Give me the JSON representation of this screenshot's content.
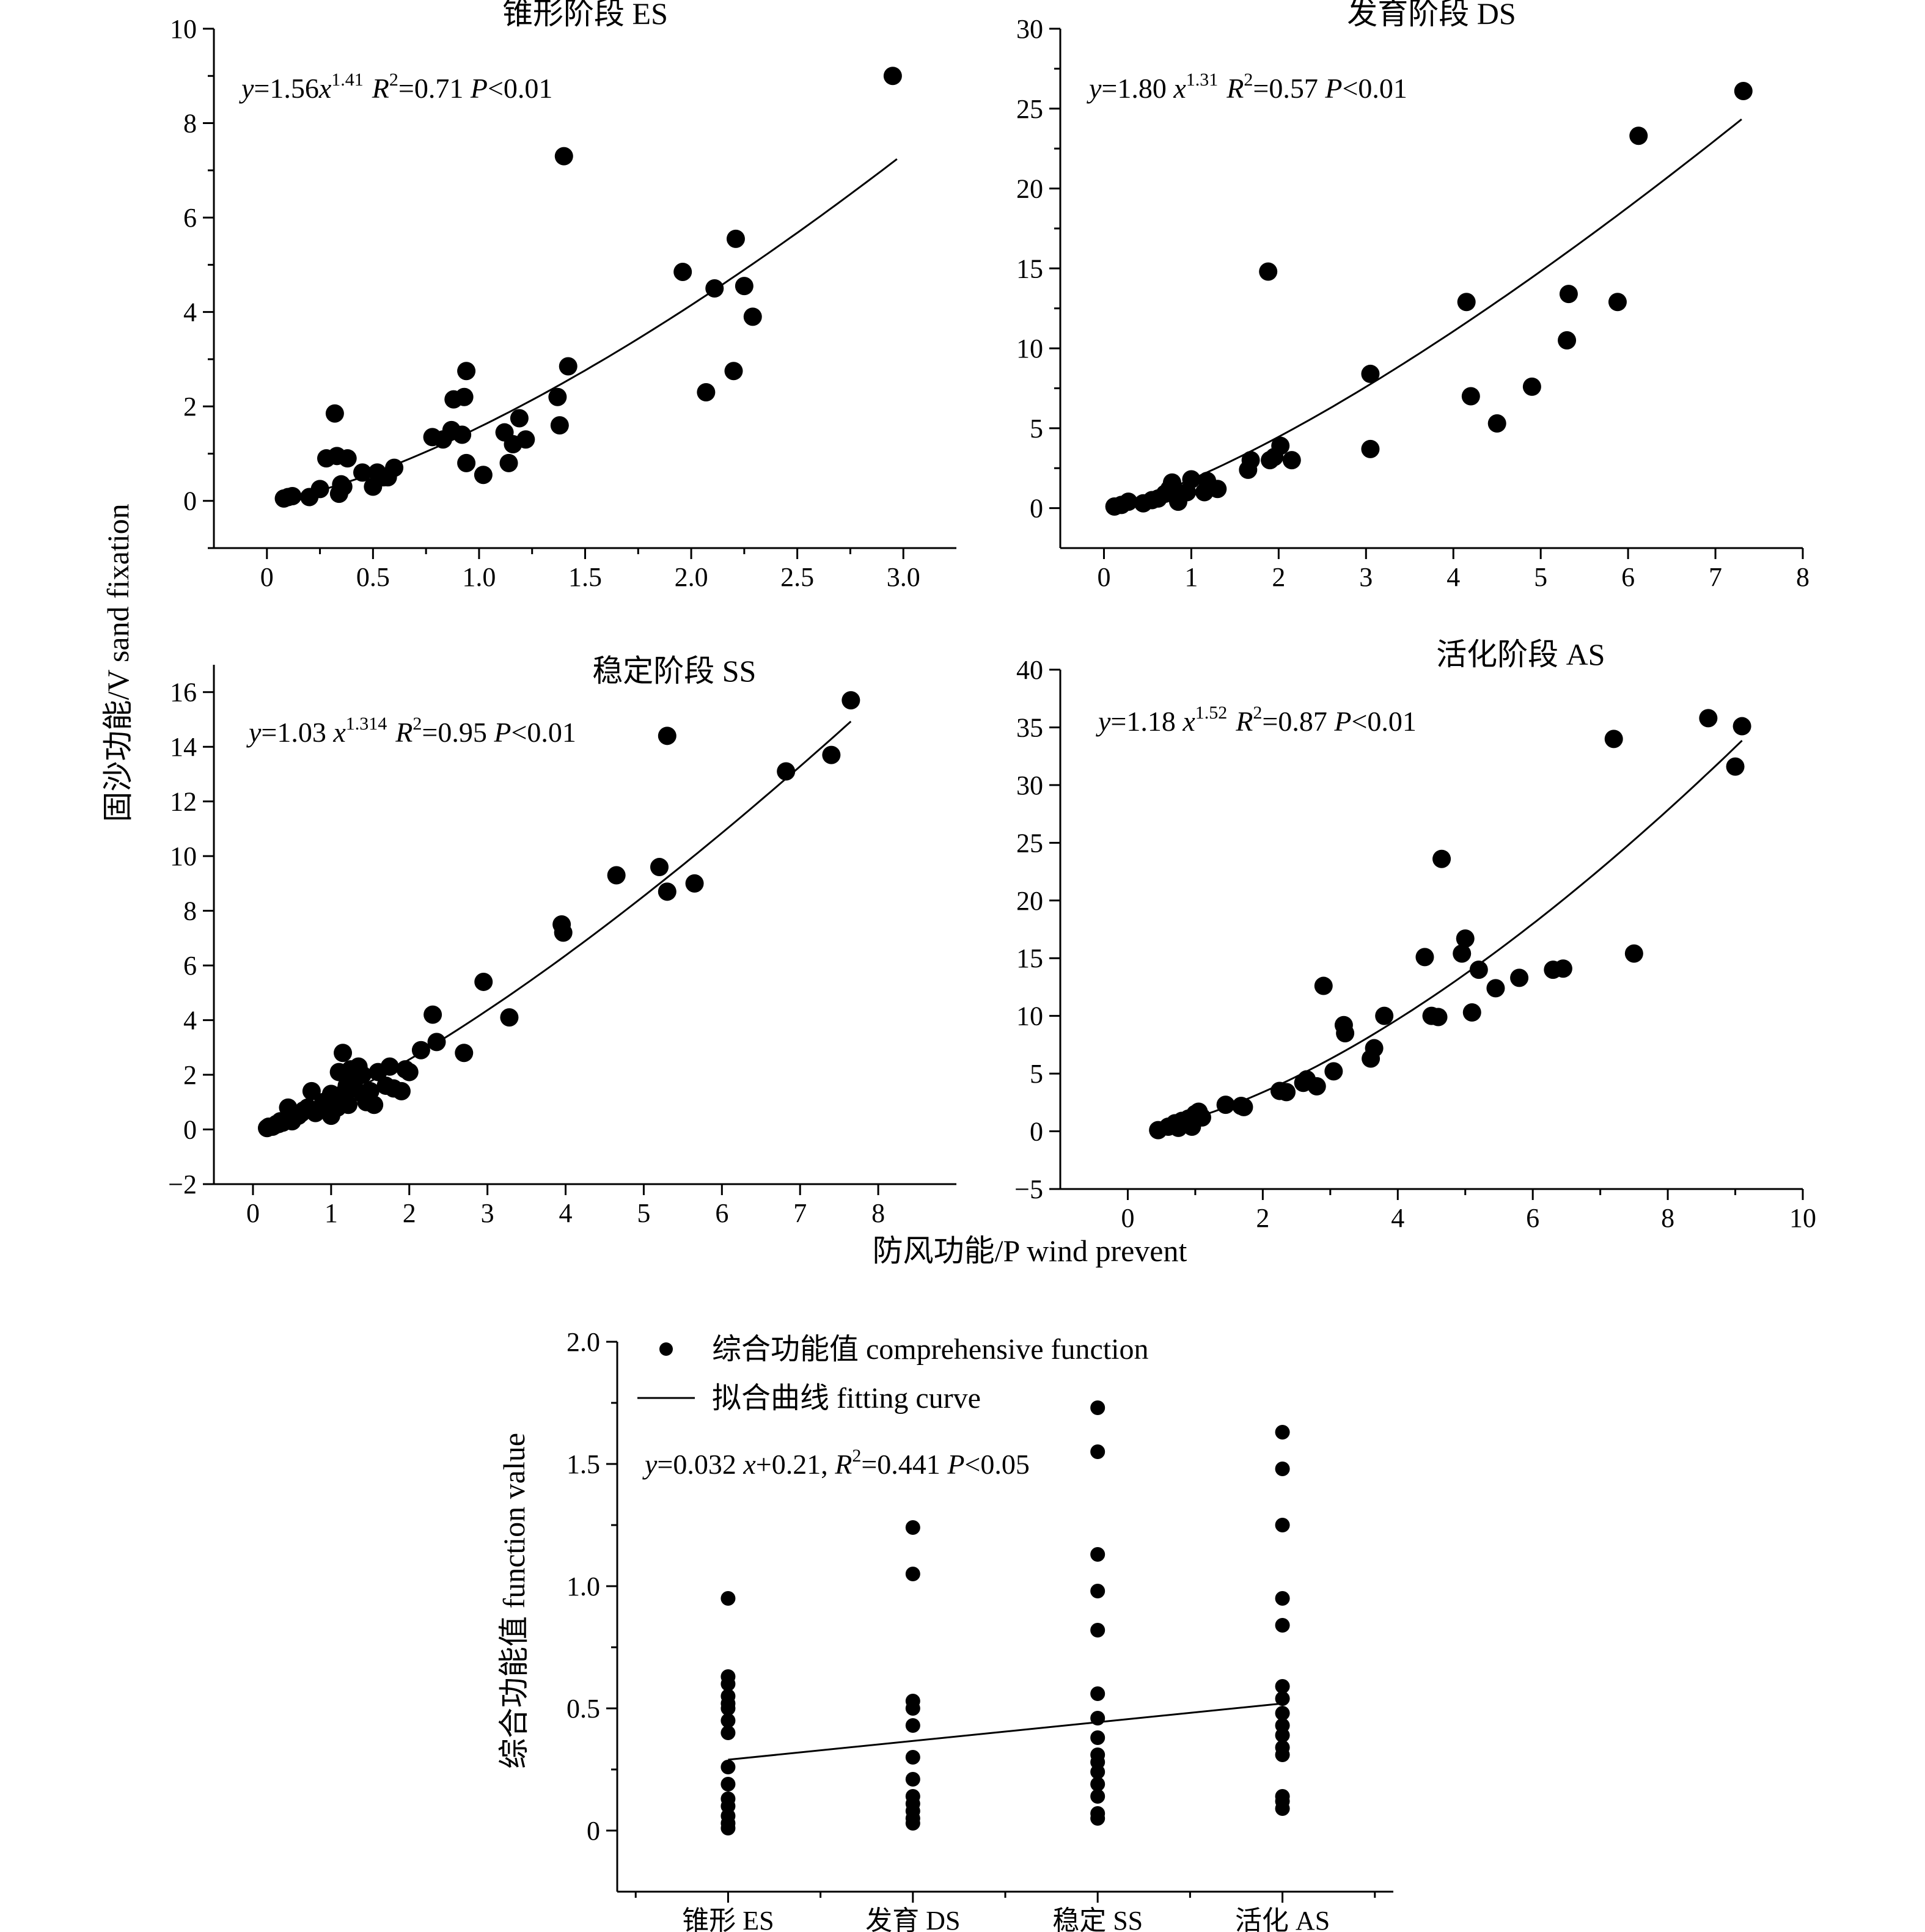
{
  "figure": {
    "shared_ylabel": "固沙功能/V sand fixation",
    "shared_xlabel": "防风功能/P wind prevent"
  },
  "chart_data": [
    {
      "id": "es",
      "type": "scatter",
      "title": "锥形阶段  ES",
      "equation": {
        "prefix": "y=1.56x",
        "exponent": "1.41",
        "r2_value": "=0.71",
        "p_value": "<0.01"
      },
      "fit": {
        "kind": "power",
        "a": 1.56,
        "b": 1.41,
        "x_from": 0.1,
        "x_to": 2.97
      },
      "xlim": [
        -0.25,
        3.25
      ],
      "ylim": [
        -1,
        10
      ],
      "xticks": [
        0,
        0.5,
        1.0,
        1.5,
        2.0,
        2.5,
        3.0
      ],
      "xtick_labels": [
        "0",
        "0.5",
        "1.0",
        "1.5",
        "2.0",
        "2.5",
        "3.0"
      ],
      "xtick_minor": [
        0.25,
        0.75,
        1.25,
        1.75,
        2.25,
        2.75
      ],
      "yticks": [
        0,
        2,
        4,
        6,
        8,
        10
      ],
      "ytick_labels": [
        "0",
        "2",
        "4",
        "6",
        "8",
        "10"
      ],
      "ytick_minor": [
        -1,
        1,
        3,
        5,
        7,
        9
      ],
      "x": [
        0.08,
        0.1,
        0.12,
        0.2,
        0.25,
        0.28,
        0.32,
        0.33,
        0.34,
        0.35,
        0.36,
        0.38,
        0.45,
        0.5,
        0.52,
        0.55,
        0.57,
        0.6,
        0.78,
        0.83,
        0.87,
        0.88,
        0.92,
        0.93,
        0.94,
        0.94,
        1.02,
        1.12,
        1.14,
        1.16,
        1.19,
        1.22,
        1.37,
        1.38,
        1.4,
        1.42,
        1.96,
        2.07,
        2.11,
        2.2,
        2.21,
        2.25,
        2.29,
        2.95
      ],
      "y": [
        0.05,
        0.08,
        0.1,
        0.08,
        0.25,
        0.9,
        1.85,
        0.95,
        0.15,
        0.35,
        0.3,
        0.9,
        0.6,
        0.3,
        0.6,
        0.5,
        0.5,
        0.7,
        1.35,
        1.3,
        1.5,
        2.15,
        1.4,
        2.2,
        2.75,
        0.8,
        0.55,
        1.45,
        0.8,
        1.2,
        1.75,
        1.3,
        2.2,
        1.6,
        7.3,
        2.85,
        4.85,
        2.3,
        4.5,
        2.75,
        5.55,
        4.55,
        3.9,
        9.0
      ]
    },
    {
      "id": "ds",
      "type": "scatter",
      "title": "发育阶段  DS",
      "equation": {
        "prefix": "y=1.80 x",
        "exponent": "1.31",
        "r2_value": "=0.57",
        "p_value": "<0.01"
      },
      "fit": {
        "kind": "power",
        "a": 1.8,
        "b": 1.31,
        "x_from": 0.1,
        "x_to": 7.3
      },
      "xlim": [
        -0.5,
        8
      ],
      "ylim": [
        -2.5,
        30
      ],
      "xticks": [
        0,
        1,
        2,
        3,
        4,
        5,
        6,
        7,
        8
      ],
      "xtick_labels": [
        "0",
        "1",
        "2",
        "3",
        "4",
        "5",
        "6",
        "7",
        "8"
      ],
      "xtick_minor": [],
      "yticks": [
        0,
        5,
        10,
        15,
        20,
        25,
        30
      ],
      "ytick_labels": [
        "0",
        "5",
        "10",
        "15",
        "20",
        "25",
        "30"
      ],
      "ytick_minor": [
        2.5,
        7.5,
        12.5,
        17.5,
        22.5,
        27.5
      ],
      "x": [
        0.12,
        0.2,
        0.28,
        0.45,
        0.55,
        0.62,
        0.7,
        0.75,
        0.78,
        0.8,
        0.85,
        0.95,
        1.0,
        1.15,
        1.18,
        1.3,
        1.65,
        1.68,
        1.88,
        1.9,
        1.95,
        2.02,
        2.15,
        3.05,
        3.05,
        4.15,
        4.2,
        4.5,
        4.9,
        5.3,
        5.32,
        5.88,
        6.12,
        7.32
      ],
      "y": [
        0.1,
        0.2,
        0.4,
        0.3,
        0.5,
        0.6,
        0.9,
        1.2,
        1.6,
        1.2,
        0.4,
        1.0,
        1.8,
        1.0,
        1.7,
        1.2,
        2.4,
        3.0,
        14.8,
        3.0,
        3.2,
        3.9,
        3.0,
        8.4,
        3.7,
        12.9,
        7.0,
        5.3,
        7.6,
        10.5,
        13.4,
        12.9,
        23.3,
        26.1
      ]
    },
    {
      "id": "ss",
      "type": "scatter",
      "title": "稳定阶段  SS",
      "equation": {
        "prefix": "y=1.03 x",
        "exponent": "1.314",
        "r2_value": "=0.95",
        "p_value": "<0.01"
      },
      "fit": {
        "kind": "power",
        "a": 1.03,
        "b": 1.314,
        "x_from": 0.18,
        "x_to": 7.65
      },
      "xlim": [
        -0.5,
        9
      ],
      "ylim": [
        -2,
        17
      ],
      "xticks": [
        0,
        1,
        2,
        3,
        4,
        5,
        6,
        7,
        8
      ],
      "xtick_labels": [
        "0",
        "1",
        "2",
        "3",
        "4",
        "5",
        "6",
        "7",
        "8"
      ],
      "xtick_minor": [],
      "yticks": [
        -2,
        0,
        2,
        4,
        6,
        8,
        10,
        12,
        14,
        16
      ],
      "ytick_labels": [
        "−2",
        "0",
        "2",
        "4",
        "6",
        "8",
        "10",
        "12",
        "14",
        "16"
      ],
      "ytick_minor": [],
      "x": [
        0.18,
        0.2,
        0.25,
        0.28,
        0.3,
        0.33,
        0.35,
        0.38,
        0.4,
        0.42,
        0.45,
        0.45,
        0.48,
        0.5,
        0.55,
        0.58,
        0.62,
        0.65,
        0.7,
        0.75,
        0.8,
        0.85,
        0.9,
        0.95,
        1.0,
        1.0,
        1.05,
        1.08,
        1.1,
        1.12,
        1.15,
        1.18,
        1.2,
        1.22,
        1.25,
        1.28,
        1.3,
        1.35,
        1.4,
        1.4,
        1.45,
        1.5,
        1.55,
        1.6,
        1.7,
        1.75,
        1.8,
        1.9,
        1.95,
        2.0,
        2.15,
        2.3,
        2.35,
        2.7,
        2.95,
        3.28,
        3.95,
        3.97,
        4.65,
        5.2,
        5.3,
        5.3,
        5.65,
        6.82,
        7.4,
        7.65
      ],
      "y": [
        0.05,
        0.1,
        0.1,
        0.15,
        0.2,
        0.2,
        0.3,
        0.25,
        0.3,
        0.35,
        0.4,
        0.8,
        0.4,
        0.3,
        0.5,
        0.5,
        0.6,
        0.7,
        0.8,
        1.4,
        0.6,
        0.7,
        1.0,
        0.8,
        1.3,
        0.5,
        0.9,
        0.8,
        2.1,
        1.2,
        2.8,
        1.4,
        1.6,
        0.9,
        2.2,
        1.5,
        1.8,
        2.3,
        2.0,
        1.3,
        1.0,
        1.4,
        0.9,
        2.1,
        1.6,
        2.3,
        1.5,
        1.4,
        2.2,
        2.1,
        2.9,
        4.2,
        3.2,
        2.8,
        5.4,
        4.1,
        7.5,
        7.2,
        9.3,
        9.6,
        8.7,
        14.4,
        9.0,
        13.1,
        13.7,
        15.7
      ]
    },
    {
      "id": "as",
      "type": "scatter",
      "title": "活化阶段  AS",
      "equation": {
        "prefix": "y=1.18 x",
        "exponent": "1.52",
        "r2_value": "=0.87",
        "p_value": "<0.01"
      },
      "fit": {
        "kind": "power",
        "a": 1.18,
        "b": 1.52,
        "x_from": 0.4,
        "x_to": 9.1
      },
      "xlim": [
        -1,
        10
      ],
      "ylim": [
        -5,
        40
      ],
      "xticks": [
        0,
        2,
        4,
        6,
        8,
        10
      ],
      "xtick_labels": [
        "0",
        "2",
        "4",
        "6",
        "8",
        "10"
      ],
      "xtick_minor": [
        1,
        3,
        5,
        7,
        9
      ],
      "yticks": [
        -5,
        0,
        5,
        10,
        15,
        20,
        25,
        30,
        35,
        40
      ],
      "ytick_labels": [
        "−5",
        "0",
        "5",
        "10",
        "15",
        "20",
        "25",
        "30",
        "35",
        "40"
      ],
      "ytick_minor": [],
      "x": [
        0.45,
        0.6,
        0.7,
        0.75,
        0.8,
        0.9,
        0.95,
        1.0,
        1.05,
        1.1,
        1.45,
        1.68,
        1.72,
        2.25,
        2.35,
        2.6,
        2.65,
        2.8,
        2.9,
        3.05,
        3.2,
        3.22,
        3.6,
        3.65,
        3.8,
        4.4,
        4.5,
        4.6,
        4.65,
        4.95,
        5.0,
        5.1,
        5.2,
        5.45,
        5.8,
        6.3,
        6.45,
        7.2,
        7.5,
        8.6,
        9.0,
        9.1
      ],
      "y": [
        0.1,
        0.4,
        0.7,
        0.3,
        0.9,
        1.1,
        0.4,
        1.5,
        1.7,
        1.2,
        2.3,
        2.2,
        2.1,
        3.5,
        3.4,
        4.2,
        4.5,
        3.9,
        12.6,
        5.2,
        9.2,
        8.5,
        6.3,
        7.2,
        10.0,
        15.1,
        10.0,
        9.9,
        23.6,
        15.4,
        16.7,
        10.3,
        14.0,
        12.4,
        13.3,
        14.0,
        14.1,
        34.0,
        15.4,
        35.8,
        31.6,
        35.1
      ]
    },
    {
      "id": "comprehensive",
      "type": "scatter",
      "title": "",
      "ylabel": "综合功能值  function value",
      "equation_linear": {
        "prefix": "y=0.032 x+0.21, ",
        "r2_value": "=0.441",
        "p_value": "<0.05"
      },
      "legend": [
        {
          "kind": "dot",
          "label": "综合功能值 comprehensive function"
        },
        {
          "kind": "line",
          "label": "拟合曲线 fitting curve"
        }
      ],
      "fit": {
        "kind": "line",
        "x_from": 0,
        "x_to": 3,
        "y_from": 0.29,
        "y_to": 0.52
      },
      "xlim": [
        -0.6,
        3.6
      ],
      "ylim": [
        -0.25,
        2.0
      ],
      "categories": [
        "锥形 ES",
        "发育 DS",
        "稳定 SS",
        "活化 AS"
      ],
      "cat_ticks": [
        0,
        1,
        2,
        3
      ],
      "cat_minor": [
        -0.5,
        0.5,
        1.5,
        2.5,
        3.5
      ],
      "yticks": [
        0,
        0.5,
        1.0,
        1.5,
        2.0
      ],
      "ytick_labels": [
        "0",
        "0.5",
        "1.0",
        "1.5",
        "2.0"
      ],
      "ytick_minor": [
        0.25,
        0.75,
        1.25,
        1.75
      ],
      "series": [
        {
          "category": "锥形 ES",
          "values": [
            0.95,
            0.63,
            0.6,
            0.55,
            0.52,
            0.5,
            0.45,
            0.4,
            0.26,
            0.19,
            0.13,
            0.1,
            0.06,
            0.03,
            0.01
          ]
        },
        {
          "category": "发育 DS",
          "values": [
            1.24,
            1.05,
            0.53,
            0.5,
            0.43,
            0.3,
            0.21,
            0.14,
            0.11,
            0.08,
            0.05,
            0.03
          ]
        },
        {
          "category": "稳定 SS",
          "values": [
            1.73,
            1.55,
            1.13,
            0.98,
            0.82,
            0.56,
            0.46,
            0.38,
            0.31,
            0.28,
            0.24,
            0.19,
            0.14,
            0.07,
            0.05
          ]
        },
        {
          "category": "活化 AS",
          "values": [
            1.63,
            1.48,
            1.25,
            0.95,
            0.84,
            0.59,
            0.54,
            0.48,
            0.43,
            0.39,
            0.34,
            0.31,
            0.14,
            0.12,
            0.09
          ]
        }
      ]
    }
  ]
}
